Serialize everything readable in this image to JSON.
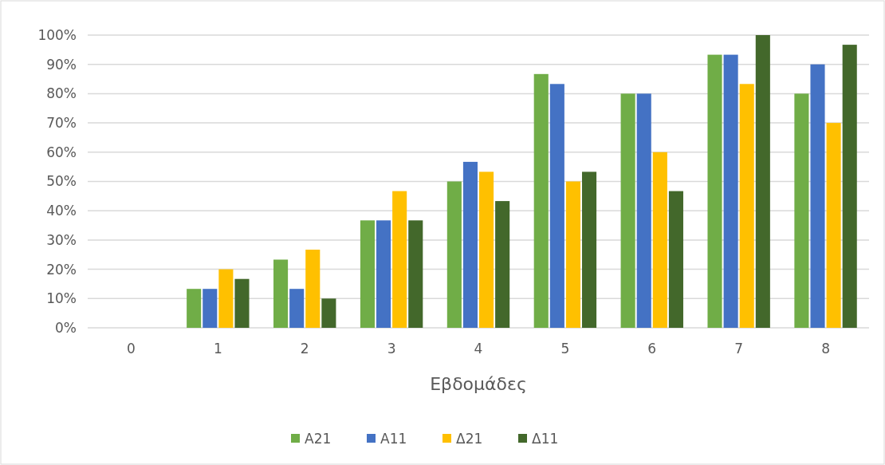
{
  "chart_data": {
    "type": "bar",
    "xlabel": "Εβδομάδες",
    "categories": [
      "0",
      "1",
      "2",
      "3",
      "4",
      "5",
      "6",
      "7",
      "8"
    ],
    "series": [
      {
        "name": "Α21",
        "color": "#70ad47",
        "values": [
          0,
          13.3,
          23.3,
          36.7,
          50,
          86.7,
          80,
          93.3,
          80
        ]
      },
      {
        "name": "Α11",
        "color": "#4472c4",
        "values": [
          0,
          13.3,
          13.3,
          36.7,
          56.7,
          83.3,
          80,
          93.3,
          90
        ]
      },
      {
        "name": "Δ21",
        "color": "#ffc000",
        "values": [
          0,
          20,
          26.7,
          46.7,
          53.3,
          50,
          60,
          83.3,
          70
        ]
      },
      {
        "name": "Δ11",
        "color": "#43682b",
        "values": [
          0,
          16.7,
          10,
          36.7,
          43.3,
          53.3,
          46.7,
          100,
          96.7
        ]
      }
    ],
    "ylim": [
      0,
      100
    ],
    "yticks": [
      {
        "value": 0,
        "label": "0%"
      },
      {
        "value": 10,
        "label": "10%"
      },
      {
        "value": 20,
        "label": "20%"
      },
      {
        "value": 30,
        "label": "30%"
      },
      {
        "value": 40,
        "label": "40%"
      },
      {
        "value": 50,
        "label": "50%"
      },
      {
        "value": 60,
        "label": "60%"
      },
      {
        "value": 70,
        "label": "70%"
      },
      {
        "value": 80,
        "label": "80%"
      },
      {
        "value": 90,
        "label": "90%"
      },
      {
        "value": 100,
        "label": "100%"
      }
    ],
    "grid": "y",
    "legend": "bottom"
  }
}
